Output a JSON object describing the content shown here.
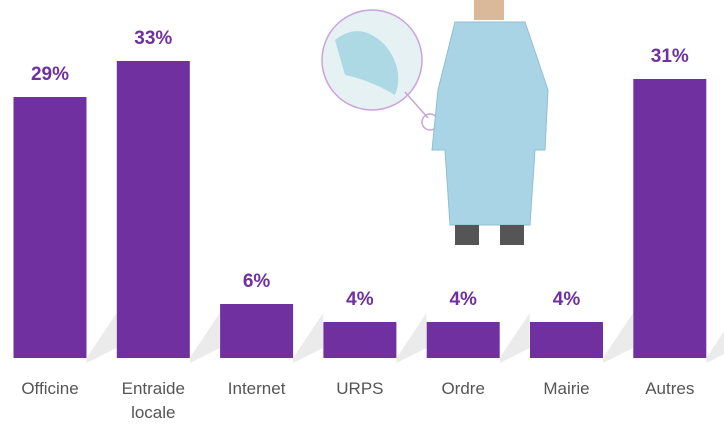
{
  "chart_data": {
    "type": "bar",
    "categories": [
      "Officine",
      "Entraide locale",
      "Internet",
      "URPS",
      "Ordre",
      "Mairie",
      "Autres"
    ],
    "values": [
      29,
      33,
      6,
      4,
      4,
      4,
      31
    ],
    "value_labels": [
      "29%",
      "33%",
      "6%",
      "4%",
      "4%",
      "4%",
      "31%"
    ],
    "color": "#7030a0"
  }
}
